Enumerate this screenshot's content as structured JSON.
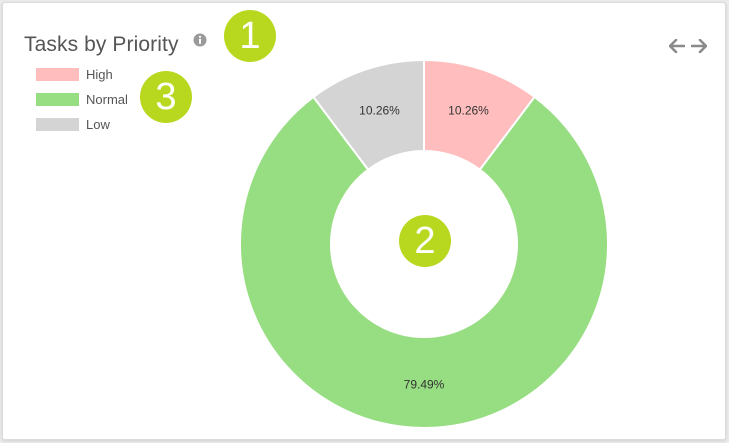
{
  "widget": {
    "title": "Tasks by Priority"
  },
  "header": {
    "info_icon": "info-icon",
    "prev_icon": "arrow-left-icon",
    "next_icon": "arrow-right-icon"
  },
  "legend": [
    {
      "label": "High",
      "color": "#ffbdbd"
    },
    {
      "label": "Normal",
      "color": "#97dd82"
    },
    {
      "label": "Low",
      "color": "#d4d4d4"
    }
  ],
  "callouts": [
    "1",
    "2",
    "3"
  ],
  "callout_color": "#b8d820",
  "chart_data": {
    "type": "pie",
    "donut": true,
    "title": "Tasks by Priority",
    "categories": [
      "High",
      "Normal",
      "Low"
    ],
    "values": [
      10.26,
      79.49,
      10.26
    ],
    "labels": [
      "10.26%",
      "79.49%",
      "10.26%"
    ],
    "colors": [
      "#ffbdbd",
      "#97dd82",
      "#d4d4d4"
    ],
    "legend": "top-left"
  }
}
